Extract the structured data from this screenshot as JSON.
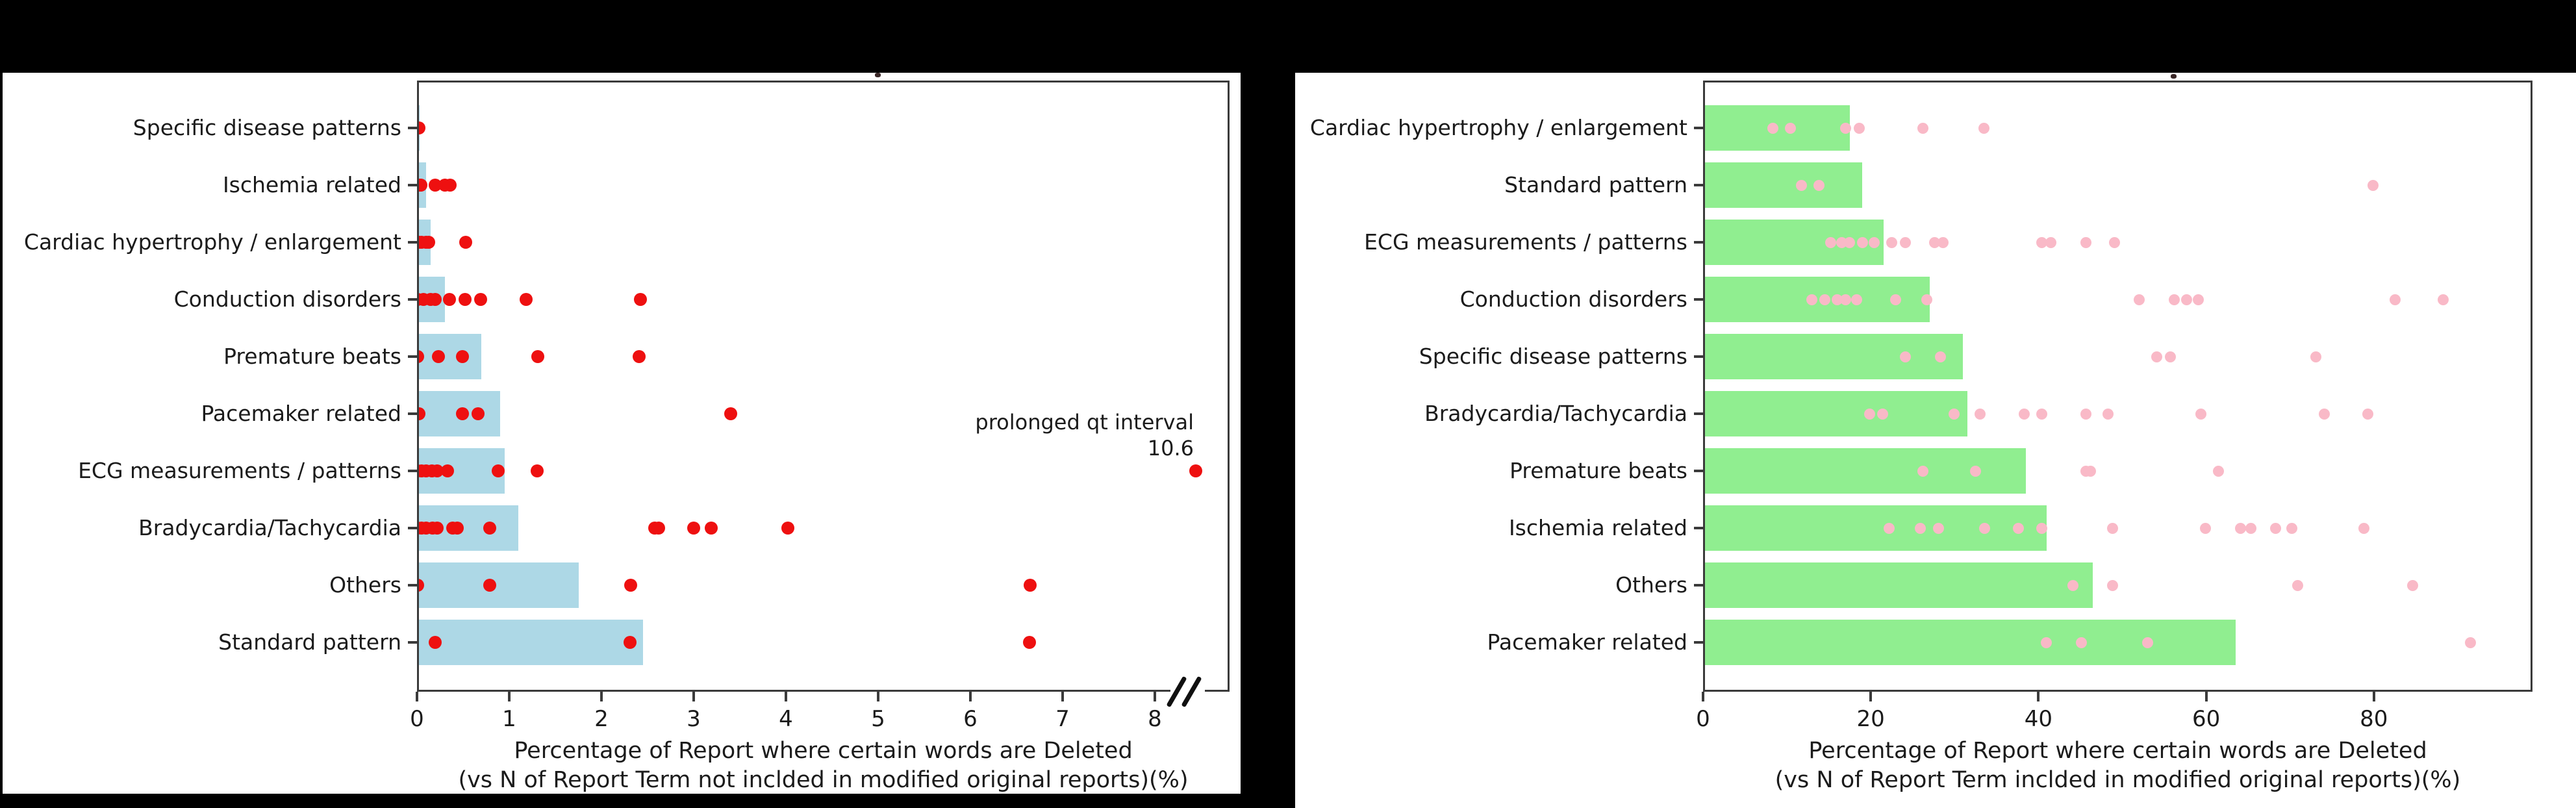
{
  "figure": {
    "background_color": "#000000",
    "panel_color": "#ffffff"
  },
  "chart_data": [
    {
      "type": "bar",
      "orientation": "horizontal",
      "legend": "none",
      "grid": false,
      "categories": [
        "Specific disease patterns",
        "Ischemia related",
        "Cardiac hypertrophy / enlargement",
        "Conduction disorders",
        "Premature beats",
        "Pacemaker related",
        "ECG measurements / patterns",
        "Bradycardia/Tachycardia",
        "Others",
        "Standard pattern"
      ],
      "values": [
        0.03,
        0.1,
        0.15,
        0.3,
        0.7,
        0.9,
        0.95,
        1.1,
        1.75,
        2.45
      ],
      "scatter_points": [
        [
          0.02
        ],
        [
          0.02,
          0.04,
          0.2,
          0.3,
          0.36
        ],
        [
          0.02,
          0.05,
          0.1,
          0.13,
          0.53
        ],
        [
          0.01,
          0.07,
          0.15,
          0.2,
          0.35,
          0.52,
          0.69,
          1.18,
          2.42
        ],
        [
          0.01,
          0.23,
          0.49,
          1.31,
          2.41
        ],
        [
          0.02,
          0.49,
          0.66,
          3.4
        ],
        [
          0.01,
          0.05,
          0.1,
          0.16,
          0.22,
          0.33,
          0.88,
          1.3
        ],
        [
          0.01,
          0.05,
          0.1,
          0.17,
          0.22,
          0.39,
          0.44,
          0.79,
          2.58,
          2.62,
          3.0,
          3.19,
          4.02
        ],
        [
          0.01,
          0.79,
          2.32,
          6.65
        ],
        [
          0.2,
          2.31,
          6.64
        ]
      ],
      "xticks": [
        0,
        1,
        2,
        3,
        4,
        5,
        6,
        7,
        8
      ],
      "xlim": [
        0,
        8.8
      ],
      "axis_break": true,
      "annotation": {
        "line1": "prolonged qt interval",
        "line2": "10.6",
        "category": "ECG measurements / patterns",
        "value": 10.6
      },
      "xlabel_line1": "Percentage of Report where certain words are Deleted",
      "xlabel_line2": "(vs N of Report Term not inclded in modified original reports)(%)",
      "bar_color": "#ADD8E6",
      "point_color": "#EE1010"
    },
    {
      "type": "bar",
      "orientation": "horizontal",
      "legend": "none",
      "grid": false,
      "categories": [
        "Cardiac hypertrophy / enlargement",
        "Standard pattern",
        "ECG measurements / patterns",
        "Conduction disorders",
        "Specific disease patterns",
        "Bradycardia/Tachycardia",
        "Premature beats",
        "Ischemia related",
        "Others",
        "Pacemaker related"
      ],
      "values": [
        17.5,
        19,
        21.5,
        27,
        31,
        31.5,
        38.5,
        41,
        46.5,
        63.5
      ],
      "scatter_points": [
        [
          8.3,
          10.4,
          17.0,
          18.6,
          26.2,
          33.5
        ],
        [
          11.7,
          13.8,
          79.9
        ],
        [
          15.2,
          16.5,
          17.5,
          19.0,
          20.4,
          22.5,
          24.1,
          27.6,
          28.6,
          40.4,
          41.5,
          45.7,
          49.1
        ],
        [
          13.0,
          14.5,
          16.0,
          17.0,
          18.3,
          23.0,
          26.7,
          52.0,
          56.2,
          57.7,
          59.1,
          82.5,
          88.3
        ],
        [
          24.1,
          28.3,
          54.1,
          55.7,
          73.1
        ],
        [
          19.9,
          21.4,
          29.9,
          33.0,
          38.3,
          40.4,
          45.7,
          48.3,
          59.4,
          74.1,
          79.3
        ],
        [
          26.2,
          32.5,
          45.7,
          46.2,
          61.5
        ],
        [
          22.2,
          25.9,
          28.1,
          33.6,
          37.6,
          40.4,
          48.8,
          59.9,
          64.1,
          65.3,
          68.3,
          70.2,
          78.8
        ],
        [
          44.1,
          48.8,
          70.9,
          84.6
        ],
        [
          40.9,
          45.1,
          53.0,
          91.5
        ]
      ],
      "xticks": [
        0,
        20,
        40,
        60,
        80
      ],
      "xlim": [
        0,
        98
      ],
      "axis_break": false,
      "annotation": null,
      "xlabel_line1": "Percentage of Report where certain words are Deleted",
      "xlabel_line2": "(vs N of Report Term inclded in modified original reports)(%)",
      "bar_color": "#90EE90",
      "point_color": "#F9B9C7"
    }
  ]
}
